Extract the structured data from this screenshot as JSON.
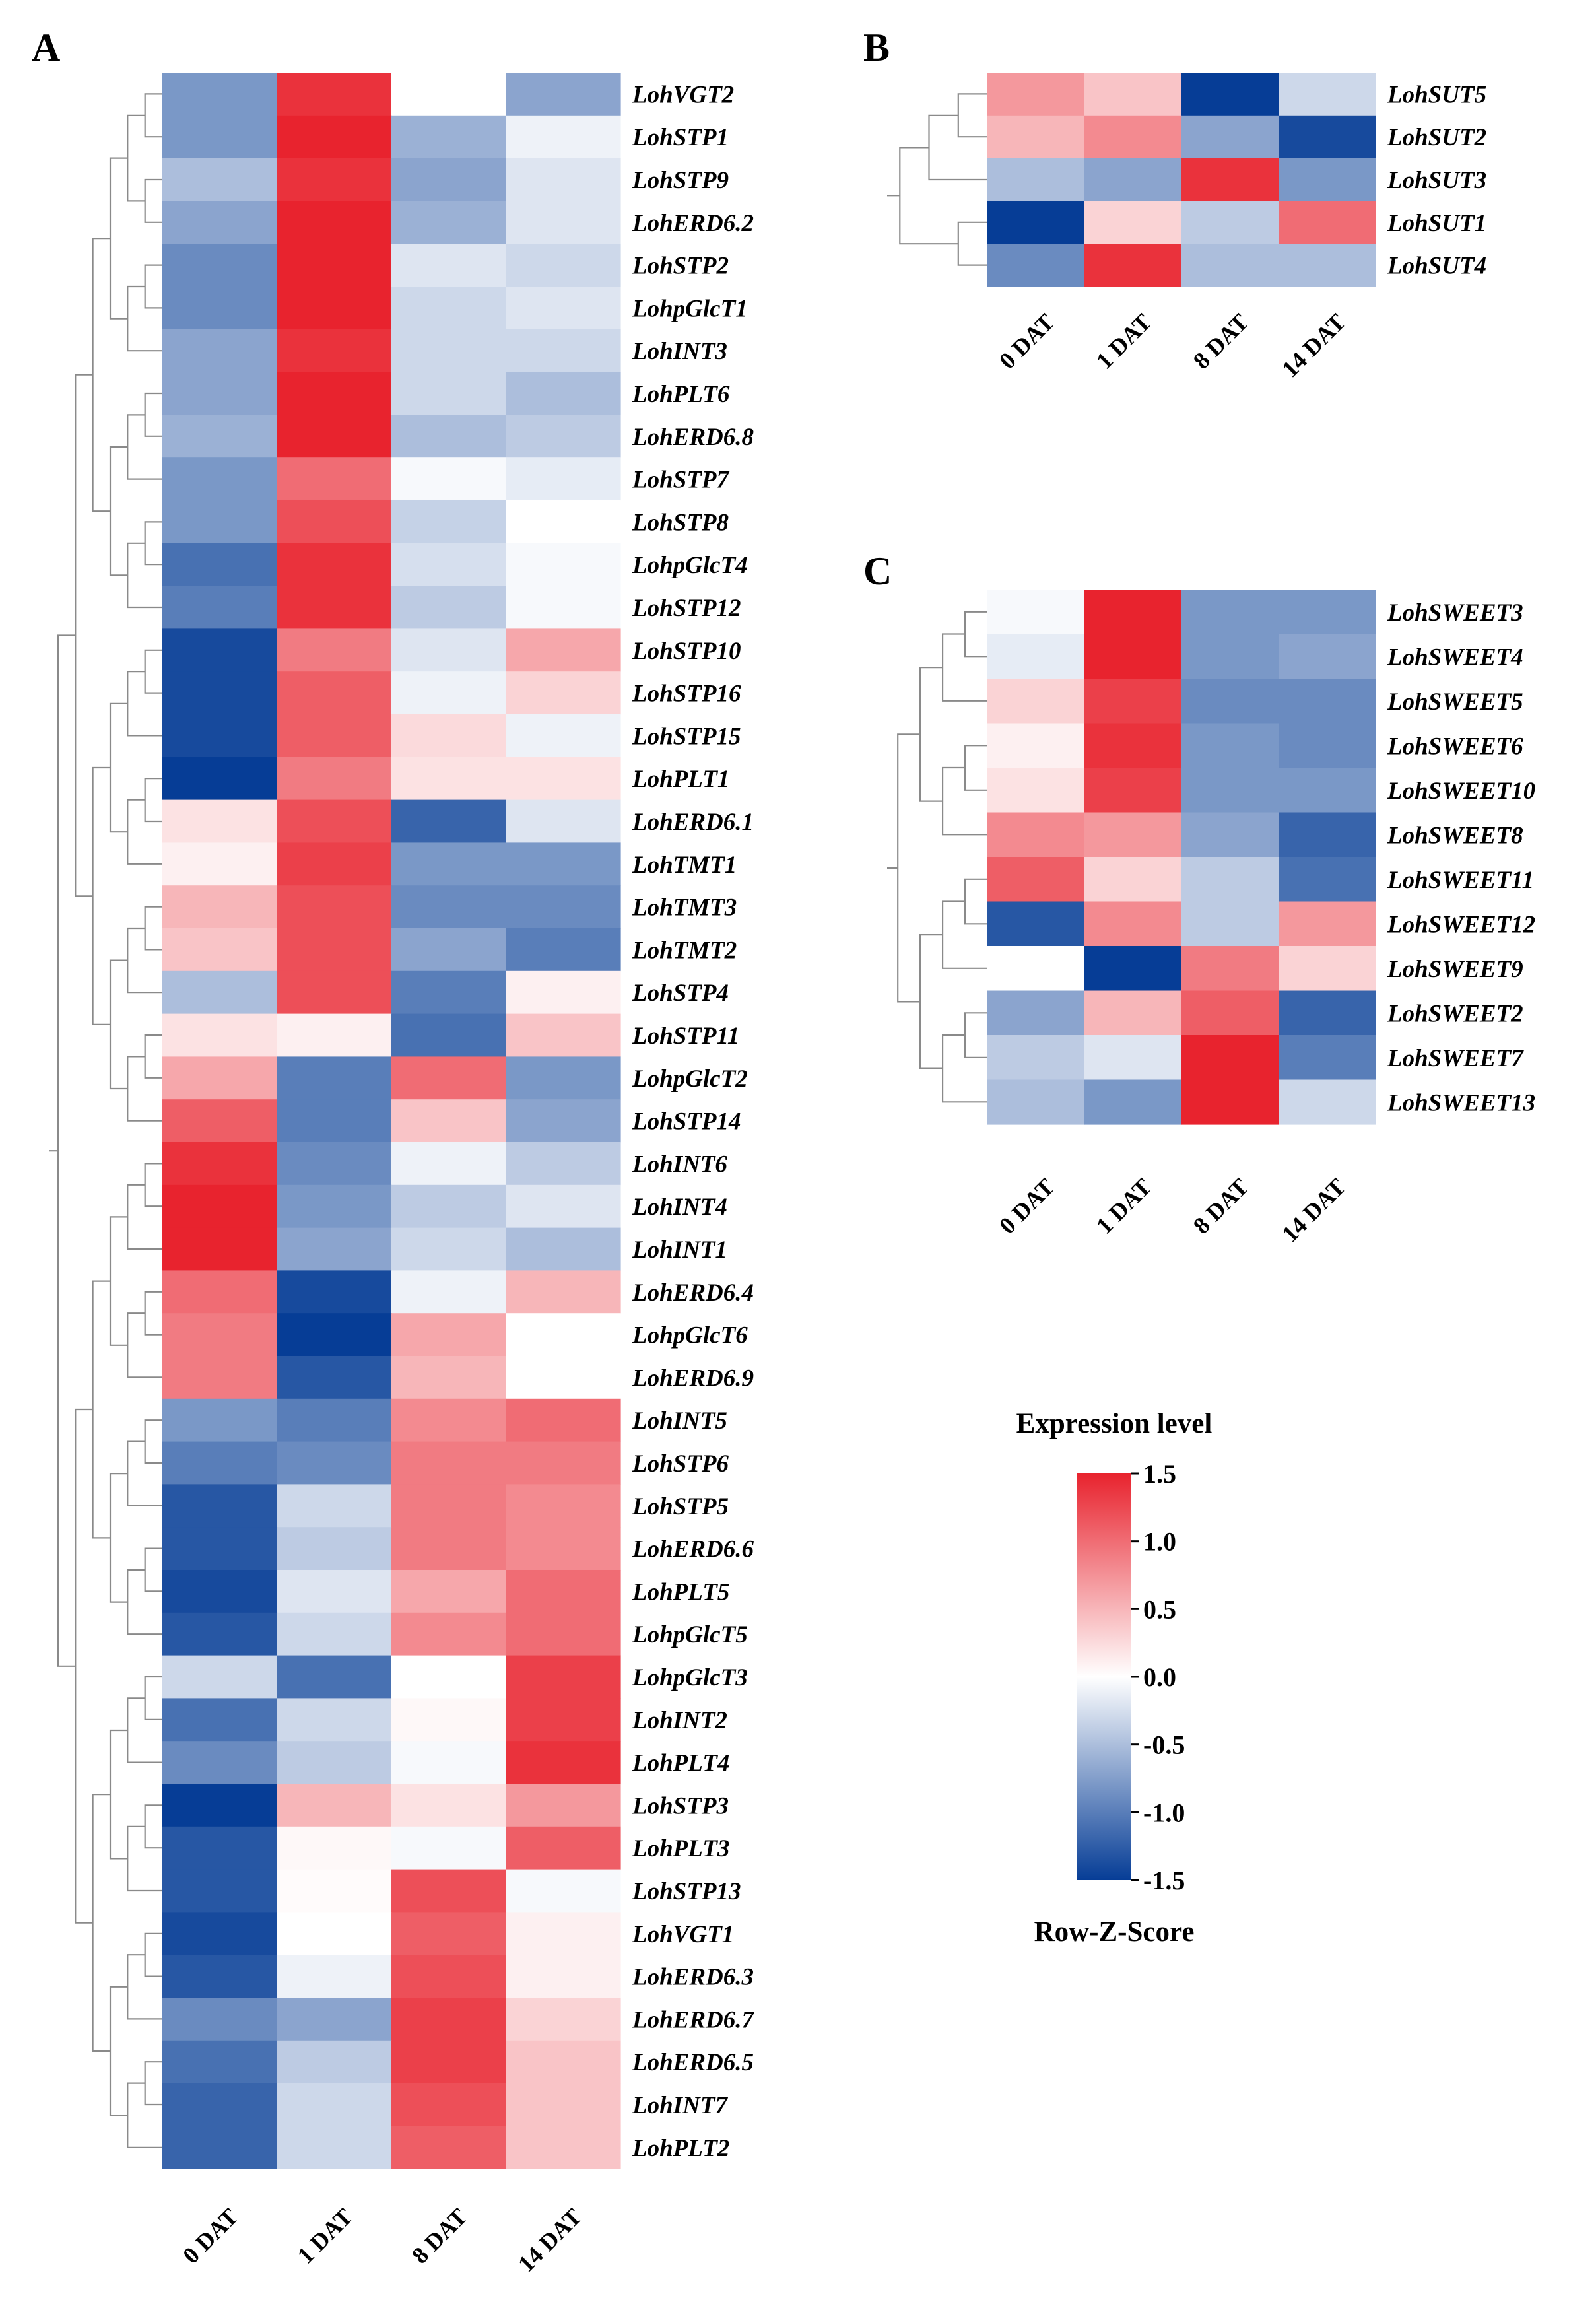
{
  "chart_data": [
    {
      "panel": "A",
      "type": "heatmap",
      "columns": [
        "0 DAT",
        "1 DAT",
        "8 DAT",
        "14 DAT"
      ],
      "rows": [
        "LohVGT2",
        "LohSTP1",
        "LohSTP9",
        "LohERD6.2",
        "LohSTP2",
        "LohpGlcT1",
        "LohINT3",
        "LohPLT6",
        "LohERD6.8",
        "LohSTP7",
        "LohSTP8",
        "LohpGlcT4",
        "LohSTP12",
        "LohSTP10",
        "LohSTP16",
        "LohSTP15",
        "LohPLT1",
        "LohERD6.1",
        "LohTMT1",
        "LohTMT3",
        "LohTMT2",
        "LohSTP4",
        "LohSTP11",
        "LohpGlcT2",
        "LohSTP14",
        "LohINT6",
        "LohINT4",
        "LohINT1",
        "LohERD6.4",
        "LohpGlcT6",
        "LohERD6.9",
        "LohINT5",
        "LohSTP6",
        "LohSTP5",
        "LohERD6.6",
        "LohPLT5",
        "LohpGlcT5",
        "LohpGlcT3",
        "LohINT2",
        "LohPLT4",
        "LohSTP3",
        "LohPLT3",
        "LohSTP13",
        "LohVGT1",
        "LohERD6.3",
        "LohERD6.7",
        "LohERD6.5",
        "LohINT7",
        "LohPLT2"
      ],
      "values": [
        [
          -0.8,
          1.4,
          0.0,
          -0.7
        ],
        [
          -0.8,
          1.5,
          -0.6,
          -0.1
        ],
        [
          -0.5,
          1.4,
          -0.7,
          -0.2
        ],
        [
          -0.7,
          1.5,
          -0.6,
          -0.2
        ],
        [
          -0.9,
          1.5,
          -0.2,
          -0.3
        ],
        [
          -0.9,
          1.5,
          -0.3,
          -0.2
        ],
        [
          -0.7,
          1.4,
          -0.3,
          -0.3
        ],
        [
          -0.7,
          1.5,
          -0.3,
          -0.5
        ],
        [
          -0.6,
          1.5,
          -0.5,
          -0.4
        ],
        [
          -0.8,
          1.0,
          -0.05,
          -0.15
        ],
        [
          -0.8,
          1.2,
          -0.35,
          0.0
        ],
        [
          -1.1,
          1.4,
          -0.25,
          -0.05
        ],
        [
          -1.0,
          1.4,
          -0.4,
          -0.05
        ],
        [
          -1.4,
          0.9,
          -0.2,
          0.6
        ],
        [
          -1.4,
          1.1,
          -0.1,
          0.3
        ],
        [
          -1.4,
          1.1,
          0.25,
          -0.1
        ],
        [
          -1.5,
          0.9,
          0.2,
          0.2
        ],
        [
          0.2,
          1.2,
          -1.2,
          -0.2
        ],
        [
          0.1,
          1.3,
          -0.8,
          -0.8
        ],
        [
          0.5,
          1.2,
          -0.9,
          -0.9
        ],
        [
          0.4,
          1.2,
          -0.7,
          -1.0
        ],
        [
          -0.5,
          1.2,
          -1.0,
          0.1
        ],
        [
          0.2,
          0.1,
          -1.1,
          0.4
        ],
        [
          0.6,
          -1.0,
          1.0,
          -0.8
        ],
        [
          1.1,
          -1.0,
          0.4,
          -0.7
        ],
        [
          1.4,
          -0.9,
          -0.1,
          -0.4
        ],
        [
          1.5,
          -0.8,
          -0.4,
          -0.2
        ],
        [
          1.5,
          -0.7,
          -0.3,
          -0.5
        ],
        [
          1.0,
          -1.4,
          -0.1,
          0.5
        ],
        [
          0.9,
          -1.5,
          0.6,
          0.0
        ],
        [
          0.9,
          -1.3,
          0.5,
          0.0
        ],
        [
          -0.8,
          -1.0,
          0.8,
          1.0
        ],
        [
          -1.0,
          -0.9,
          0.9,
          0.9
        ],
        [
          -1.3,
          -0.3,
          0.9,
          0.8
        ],
        [
          -1.3,
          -0.4,
          0.9,
          0.8
        ],
        [
          -1.4,
          -0.2,
          0.6,
          1.0
        ],
        [
          -1.3,
          -0.3,
          0.8,
          1.0
        ],
        [
          -0.3,
          -1.1,
          0.0,
          1.3
        ],
        [
          -1.1,
          -0.3,
          0.05,
          1.3
        ],
        [
          -0.9,
          -0.4,
          -0.05,
          1.4
        ],
        [
          -1.5,
          0.5,
          0.2,
          0.7
        ],
        [
          -1.3,
          0.05,
          -0.05,
          1.1
        ],
        [
          -1.3,
          0.03,
          1.2,
          -0.05
        ],
        [
          -1.4,
          0.0,
          1.1,
          0.1
        ],
        [
          -1.3,
          -0.1,
          1.2,
          0.1
        ],
        [
          -0.9,
          -0.7,
          1.3,
          0.3
        ],
        [
          -1.1,
          -0.4,
          1.3,
          0.4
        ],
        [
          -1.2,
          -0.3,
          1.2,
          0.4
        ],
        [
          -1.2,
          -0.3,
          1.1,
          0.4
        ]
      ]
    },
    {
      "panel": "B",
      "type": "heatmap",
      "columns": [
        "0 DAT",
        "1 DAT",
        "8 DAT",
        "14 DAT"
      ],
      "rows": [
        "LohSUT5",
        "LohSUT2",
        "LohSUT3",
        "LohSUT1",
        "LohSUT4"
      ],
      "values": [
        [
          0.7,
          0.4,
          -1.5,
          -0.3
        ],
        [
          0.5,
          0.8,
          -0.7,
          -1.4
        ],
        [
          -0.5,
          -0.7,
          1.4,
          -0.8
        ],
        [
          -1.5,
          0.3,
          -0.4,
          1.0
        ],
        [
          -0.9,
          1.4,
          -0.5,
          -0.5
        ]
      ]
    },
    {
      "panel": "C",
      "type": "heatmap",
      "columns": [
        "0 DAT",
        "1 DAT",
        "8 DAT",
        "14 DAT"
      ],
      "rows": [
        "LohSWEET3",
        "LohSWEET4",
        "LohSWEET5",
        "LohSWEET6",
        "LohSWEET10",
        "LohSWEET8",
        "LohSWEET11",
        "LohSWEET12",
        "LohSWEET9",
        "LohSWEET2",
        "LohSWEET7",
        "LohSWEET13"
      ],
      "values": [
        [
          -0.05,
          1.5,
          -0.8,
          -0.8
        ],
        [
          -0.15,
          1.5,
          -0.8,
          -0.7
        ],
        [
          0.3,
          1.3,
          -0.9,
          -0.9
        ],
        [
          0.1,
          1.4,
          -0.8,
          -0.9
        ],
        [
          0.2,
          1.3,
          -0.8,
          -0.8
        ],
        [
          0.8,
          0.7,
          -0.7,
          -1.2
        ],
        [
          1.1,
          0.3,
          -0.4,
          -1.1
        ],
        [
          -1.3,
          0.8,
          -0.4,
          0.7
        ],
        [
          0.0,
          -1.5,
          0.9,
          0.3
        ],
        [
          -0.7,
          0.5,
          1.1,
          -1.2
        ],
        [
          -0.4,
          -0.2,
          1.5,
          -1.0
        ],
        [
          -0.5,
          -0.8,
          1.5,
          -0.3
        ]
      ]
    }
  ],
  "legend": {
    "title": "Expression level",
    "subtitle": "Row-Z-Score",
    "range": [
      -1.5,
      1.5
    ],
    "ticks": [
      "1.5",
      "1.0",
      "0.5",
      "0.0",
      "-0.5",
      "-1.0",
      "-1.5"
    ],
    "colors": {
      "low": "#063d96",
      "mid": "#ffffff",
      "high": "#e8232e"
    }
  },
  "panel_labels": [
    "A",
    "B",
    "C"
  ]
}
